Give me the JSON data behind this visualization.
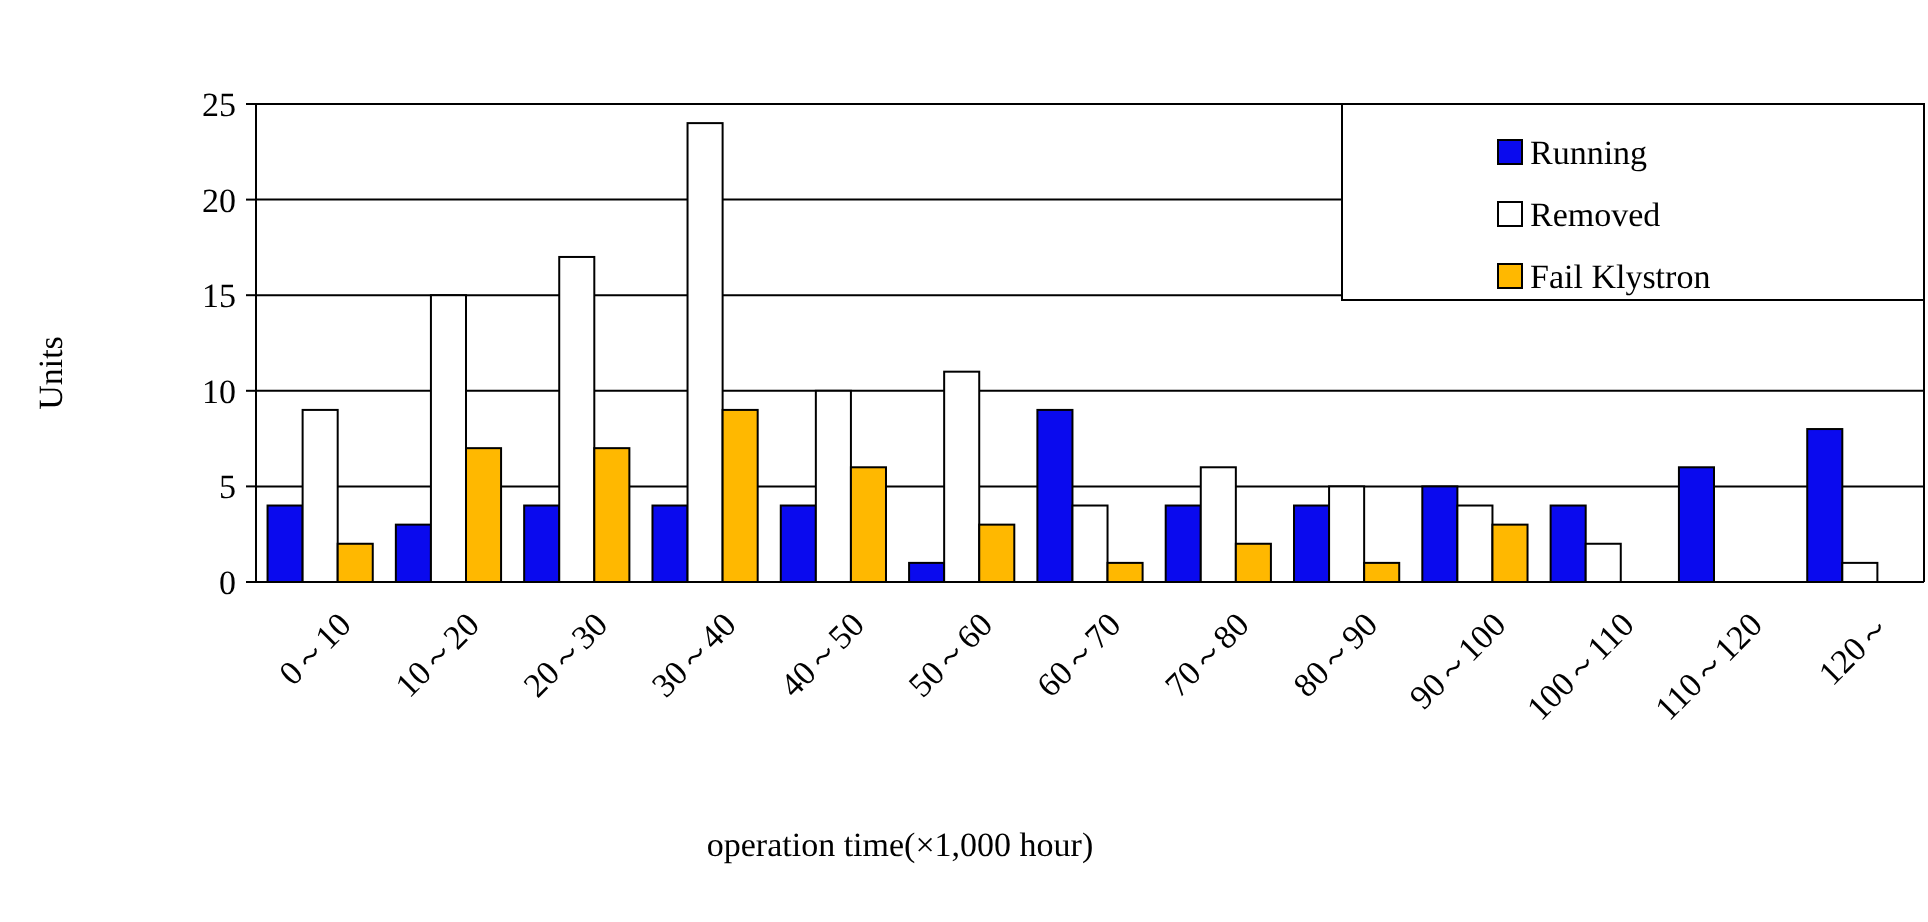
{
  "chart_data": {
    "type": "bar",
    "xlabel": "operation time(×1,000 hour)",
    "ylabel": "Units",
    "categories": [
      "0～10",
      "10～20",
      "20～30",
      "30～40",
      "40～50",
      "50～60",
      "60～70",
      "70～80",
      "80～90",
      "90～100",
      "100～110",
      "110～120",
      "120～"
    ],
    "series": [
      {
        "name": "Running",
        "color": "#0a0aee",
        "values": [
          4,
          3,
          4,
          4,
          4,
          1,
          9,
          4,
          4,
          5,
          4,
          6,
          8
        ]
      },
      {
        "name": "Removed",
        "color": "#ffffff",
        "values": [
          9,
          15,
          17,
          24,
          10,
          11,
          4,
          6,
          5,
          4,
          2,
          0,
          1
        ]
      },
      {
        "name": "Fail Klystron",
        "color": "#ffb800",
        "values": [
          2,
          7,
          7,
          9,
          6,
          3,
          1,
          2,
          1,
          3,
          0,
          0,
          0
        ]
      }
    ],
    "ylim": [
      0,
      25
    ],
    "yticks": [
      0,
      5,
      10,
      15,
      20,
      25
    ],
    "grid": "y",
    "legend": "top right"
  }
}
